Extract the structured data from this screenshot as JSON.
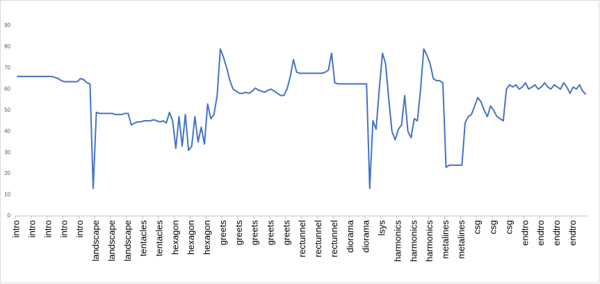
{
  "chart_data": {
    "type": "line",
    "categories": [
      "intro",
      null,
      null,
      null,
      null,
      "intro",
      null,
      null,
      null,
      null,
      "intro",
      null,
      null,
      null,
      null,
      "intro",
      null,
      null,
      null,
      null,
      "intro",
      null,
      null,
      null,
      null,
      "landscape",
      null,
      null,
      null,
      null,
      "landscape",
      null,
      null,
      null,
      null,
      "landscape",
      null,
      null,
      null,
      null,
      "tentacles",
      null,
      null,
      null,
      null,
      "tentacles",
      null,
      null,
      null,
      null,
      "hexagon",
      null,
      null,
      null,
      null,
      "hexagon",
      null,
      null,
      null,
      null,
      "hexagon",
      null,
      null,
      null,
      null,
      "greets",
      null,
      null,
      null,
      null,
      "greets",
      null,
      null,
      null,
      null,
      "greets",
      null,
      null,
      null,
      null,
      "greets",
      null,
      null,
      null,
      null,
      "greets",
      null,
      null,
      null,
      null,
      "rectunnel",
      null,
      null,
      null,
      null,
      "rectunnel",
      null,
      null,
      null,
      null,
      "rectunnel",
      null,
      null,
      null,
      null,
      "diorama",
      null,
      null,
      null,
      null,
      "diorama",
      null,
      null,
      null,
      null,
      "lsys",
      null,
      null,
      null,
      null,
      "harmonics",
      null,
      null,
      null,
      null,
      "harmonics",
      null,
      null,
      null,
      null,
      "harmonics",
      null,
      null,
      null,
      null,
      "metalines",
      null,
      null,
      null,
      null,
      "metalines",
      null,
      null,
      null,
      null,
      "csg",
      null,
      null,
      null,
      null,
      "csg",
      null,
      null,
      null,
      null,
      "csg",
      null,
      null,
      null,
      null,
      "endtro",
      null,
      null,
      null,
      null,
      "endtro",
      null,
      null,
      null,
      null,
      "endtro",
      null,
      null,
      null,
      null,
      "endtro",
      null,
      null,
      null,
      null
    ],
    "series": [
      {
        "color": "#4472c4",
        "values": [
          66,
          66,
          66,
          66,
          66,
          66,
          66,
          66,
          66,
          66,
          66,
          66,
          65.5,
          65,
          64,
          63.5,
          63.5,
          63.5,
          63.5,
          63.5,
          65,
          64.5,
          63,
          62.5,
          13,
          49,
          48.5,
          48.5,
          48.5,
          48.5,
          48.5,
          48,
          48,
          48,
          48.5,
          48.5,
          43,
          44,
          44.5,
          44.5,
          45,
          45,
          45,
          45.5,
          45,
          44.5,
          45,
          44,
          49,
          45,
          32,
          47,
          33,
          48,
          31,
          33,
          47,
          35,
          42,
          34,
          53,
          46,
          48,
          57,
          79,
          75,
          70,
          64,
          60,
          59,
          58,
          58,
          58.5,
          58,
          59,
          60.5,
          59.5,
          59,
          58.5,
          59.5,
          60,
          59,
          58,
          57,
          57,
          60,
          66,
          74,
          68,
          67.5,
          67.5,
          67.5,
          67.5,
          67.5,
          67.5,
          67.5,
          67.5,
          68,
          69,
          77,
          63,
          62.5,
          62.5,
          62.5,
          62.5,
          62.5,
          62.5,
          62.5,
          62.5,
          62.5,
          62.5,
          13,
          45,
          41,
          60,
          77,
          72,
          55,
          40,
          36,
          41,
          43,
          57,
          40,
          37,
          46,
          45,
          60,
          79,
          76,
          72,
          65,
          64,
          64,
          63,
          23,
          24,
          24,
          24,
          24,
          24,
          44,
          47,
          48,
          52,
          56,
          54,
          50,
          47,
          52,
          50,
          47,
          46,
          45,
          60,
          62,
          61,
          62,
          60,
          61,
          63,
          60,
          61,
          62,
          60,
          61,
          63,
          61,
          60,
          62,
          61,
          60,
          63,
          61,
          58,
          61,
          60,
          62,
          59,
          57.5
        ]
      }
    ],
    "ylim": [
      0,
      90
    ],
    "yticks": [
      0,
      10,
      20,
      30,
      40,
      50,
      60,
      70,
      80,
      90
    ],
    "grid": false
  }
}
